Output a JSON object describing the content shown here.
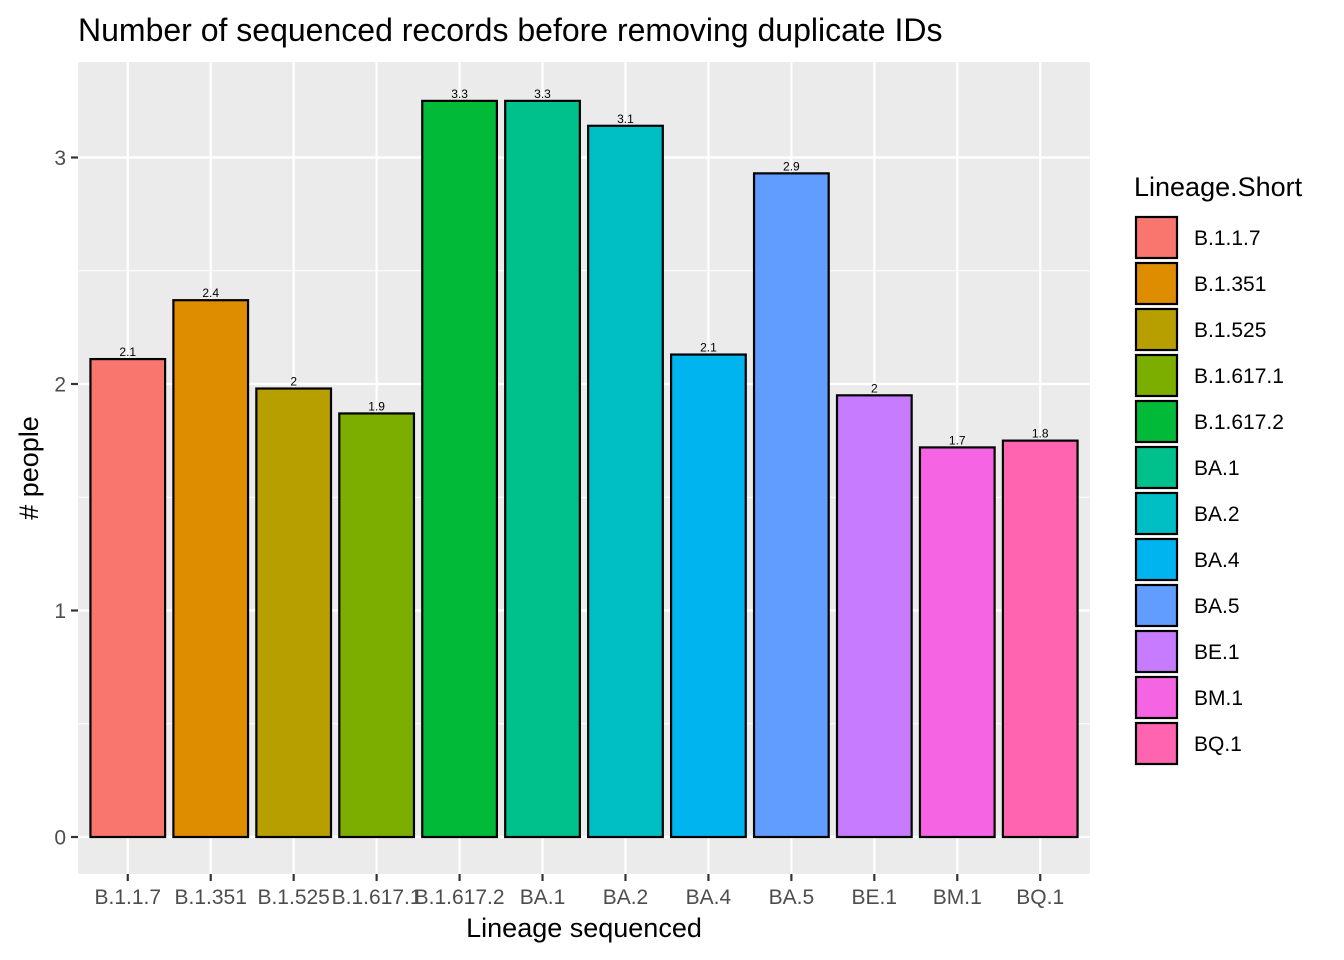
{
  "chart_data": {
    "type": "bar",
    "title": "Number of sequenced records before removing duplicate IDs",
    "xlabel": "Lineage sequenced",
    "ylabel": "# people",
    "categories": [
      "B.1.1.7",
      "B.1.351",
      "B.1.525",
      "B.1.617.1",
      "B.1.617.2",
      "BA.1",
      "BA.2",
      "BA.4",
      "BA.5",
      "BE.1",
      "BM.1",
      "BQ.1"
    ],
    "values": [
      2.11,
      2.37,
      1.98,
      1.87,
      3.25,
      3.25,
      3.14,
      2.13,
      2.93,
      1.95,
      1.72,
      1.75
    ],
    "data_labels": [
      "2.1",
      "2.4",
      "2",
      "1.9",
      "3.3",
      "3.3",
      "3.1",
      "2.1",
      "2.9",
      "2",
      "1.7",
      "1.8"
    ],
    "colors": [
      "#F8766D",
      "#DE8C00",
      "#B79F00",
      "#7CAE00",
      "#00BA38",
      "#00C08B",
      "#00BFC4",
      "#00B4F0",
      "#619CFF",
      "#C77CFF",
      "#F564E3",
      "#FF64B0"
    ],
    "y_ticks": [
      0,
      1,
      2,
      3
    ],
    "ylim": [
      -0.16,
      3.42
    ],
    "grid": true,
    "panel_background": "#EBEBEB",
    "legend": {
      "title": "Lineage.Short",
      "placement": "right",
      "entries": [
        "B.1.1.7",
        "B.1.351",
        "B.1.525",
        "B.1.617.1",
        "B.1.617.2",
        "BA.1",
        "BA.2",
        "BA.4",
        "BA.5",
        "BE.1",
        "BM.1",
        "BQ.1"
      ]
    }
  }
}
